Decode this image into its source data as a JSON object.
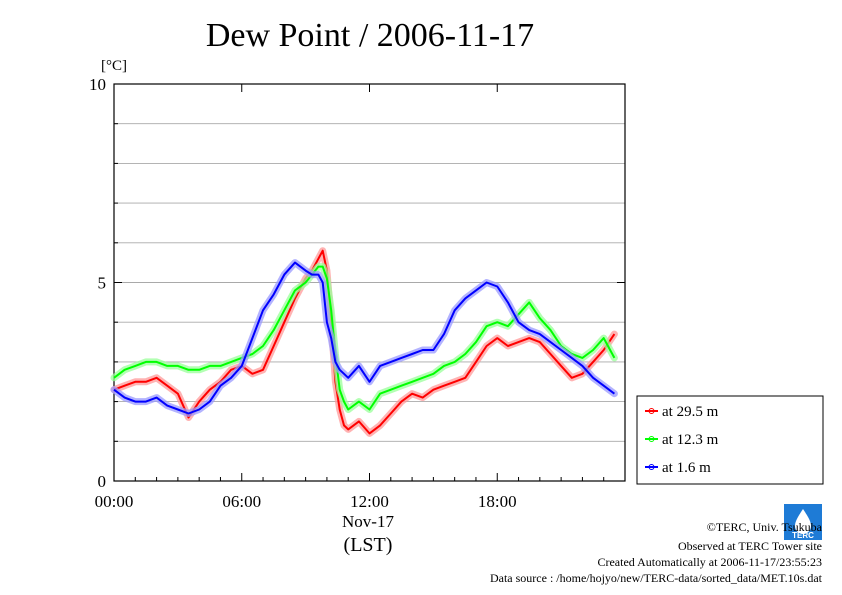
{
  "chart_data": {
    "type": "line",
    "title": "Dew Point / 2006-11-17",
    "ylabel": "[°C]",
    "xlabel_date": "Nov-17",
    "xlabel_tz": "(LST)",
    "ylim": [
      0,
      10
    ],
    "xlim": [
      0,
      24
    ],
    "x_unit": "hour of day",
    "yticks": [
      "0",
      "5",
      "10"
    ],
    "xticks": [
      "00:00",
      "06:00",
      "12:00",
      "18:00"
    ],
    "grid": true,
    "legend_position": "right",
    "series": [
      {
        "name": "at 29.5 m",
        "color": "#ff0000",
        "x": [
          0.0,
          0.5,
          1.0,
          1.5,
          2.0,
          2.5,
          3.0,
          3.5,
          4.0,
          4.5,
          5.0,
          5.5,
          6.0,
          6.5,
          7.0,
          7.5,
          8.0,
          8.5,
          9.0,
          9.3,
          9.6,
          9.8,
          10.0,
          10.2,
          10.4,
          10.6,
          10.8,
          11.0,
          11.5,
          12.0,
          12.5,
          13.0,
          13.5,
          14.0,
          14.5,
          15.0,
          15.5,
          16.0,
          16.5,
          17.0,
          17.5,
          18.0,
          18.5,
          19.0,
          19.5,
          20.0,
          20.5,
          21.0,
          21.5,
          22.0,
          22.5,
          23.0,
          23.5
        ],
        "y": [
          2.3,
          2.4,
          2.5,
          2.5,
          2.6,
          2.4,
          2.2,
          1.6,
          2.0,
          2.3,
          2.5,
          2.8,
          2.9,
          2.7,
          2.8,
          3.4,
          4.0,
          4.6,
          5.1,
          5.3,
          5.6,
          5.8,
          5.3,
          4.0,
          2.5,
          1.8,
          1.4,
          1.3,
          1.5,
          1.2,
          1.4,
          1.7,
          2.0,
          2.2,
          2.1,
          2.3,
          2.4,
          2.5,
          2.6,
          3.0,
          3.4,
          3.6,
          3.4,
          3.5,
          3.6,
          3.5,
          3.2,
          2.9,
          2.6,
          2.7,
          3.0,
          3.3,
          3.7
        ]
      },
      {
        "name": "at 12.3 m",
        "color": "#00ff00",
        "x": [
          0.0,
          0.5,
          1.0,
          1.5,
          2.0,
          2.5,
          3.0,
          3.5,
          4.0,
          4.5,
          5.0,
          5.5,
          6.0,
          6.5,
          7.0,
          7.5,
          8.0,
          8.5,
          9.0,
          9.3,
          9.6,
          9.8,
          10.0,
          10.2,
          10.4,
          10.6,
          10.8,
          11.0,
          11.5,
          12.0,
          12.5,
          13.0,
          13.5,
          14.0,
          14.5,
          15.0,
          15.5,
          16.0,
          16.5,
          17.0,
          17.5,
          18.0,
          18.5,
          19.0,
          19.5,
          20.0,
          20.5,
          21.0,
          21.5,
          22.0,
          22.5,
          23.0,
          23.5
        ],
        "y": [
          2.6,
          2.8,
          2.9,
          3.0,
          3.0,
          2.9,
          2.9,
          2.8,
          2.8,
          2.9,
          2.9,
          3.0,
          3.1,
          3.2,
          3.4,
          3.8,
          4.3,
          4.8,
          5.0,
          5.2,
          5.4,
          5.4,
          5.1,
          4.3,
          3.2,
          2.3,
          2.0,
          1.8,
          2.0,
          1.8,
          2.2,
          2.3,
          2.4,
          2.5,
          2.6,
          2.7,
          2.9,
          3.0,
          3.2,
          3.5,
          3.9,
          4.0,
          3.9,
          4.2,
          4.5,
          4.1,
          3.8,
          3.4,
          3.2,
          3.1,
          3.3,
          3.6,
          3.1
        ]
      },
      {
        "name": "at 1.6 m",
        "color": "#0000ff",
        "x": [
          0.0,
          0.5,
          1.0,
          1.5,
          2.0,
          2.5,
          3.0,
          3.5,
          4.0,
          4.5,
          5.0,
          5.5,
          6.0,
          6.5,
          7.0,
          7.5,
          8.0,
          8.5,
          9.0,
          9.3,
          9.6,
          9.8,
          10.0,
          10.2,
          10.4,
          10.6,
          10.8,
          11.0,
          11.5,
          12.0,
          12.5,
          13.0,
          13.5,
          14.0,
          14.5,
          15.0,
          15.5,
          16.0,
          16.5,
          17.0,
          17.5,
          18.0,
          18.5,
          19.0,
          19.5,
          20.0,
          20.5,
          21.0,
          21.5,
          22.0,
          22.5,
          23.0,
          23.5
        ],
        "y": [
          2.3,
          2.1,
          2.0,
          2.0,
          2.1,
          1.9,
          1.8,
          1.7,
          1.8,
          2.0,
          2.4,
          2.6,
          2.9,
          3.6,
          4.3,
          4.7,
          5.2,
          5.5,
          5.3,
          5.2,
          5.2,
          5.0,
          4.0,
          3.6,
          3.0,
          2.8,
          2.7,
          2.6,
          2.9,
          2.5,
          2.9,
          3.0,
          3.1,
          3.2,
          3.3,
          3.3,
          3.7,
          4.3,
          4.6,
          4.8,
          5.0,
          4.9,
          4.5,
          4.0,
          3.8,
          3.7,
          3.5,
          3.3,
          3.1,
          2.9,
          2.6,
          2.4,
          2.2
        ]
      }
    ]
  },
  "footer": {
    "logo_text": "TERC",
    "copyright": "©TERC, Univ. Tsukuba",
    "observed": "Observed at TERC Tower site",
    "created": "Created Automatically at 2006-11-17/23:55:23",
    "source": "Data source : /home/hojyo/new/TERC-data/sorted_data/MET.10s.dat"
  }
}
